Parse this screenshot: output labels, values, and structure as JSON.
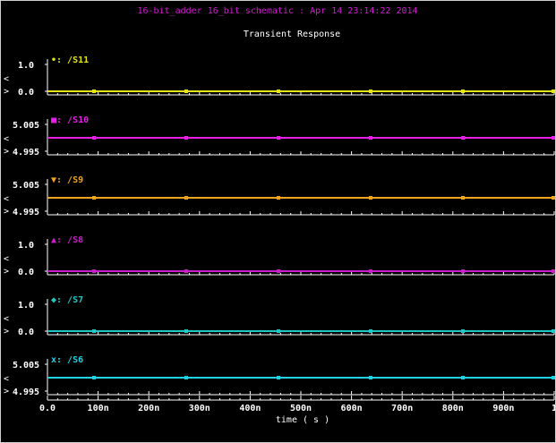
{
  "window": {
    "header": "16-bit_adder 16_bit schematic : Apr 14 23:14:22 2014",
    "title": "Transient Response"
  },
  "colors": {
    "background": "#000000",
    "axis": "#ffffff",
    "header": "#d21bd2"
  },
  "chart_data": [
    {
      "type": "line",
      "signal": "S11",
      "legend": "/S11",
      "marker": "•",
      "color": "#e4e419",
      "ytick_labels": [
        "1.0",
        "0.0"
      ],
      "ylim": [
        0.0,
        1.0
      ],
      "x": [
        0,
        1e-06
      ],
      "values": [
        0.0,
        0.0
      ]
    },
    {
      "type": "line",
      "signal": "S10",
      "legend": "/S10",
      "marker": "■",
      "color": "#e61ee6",
      "ytick_labels": [
        "5.005",
        "4.995"
      ],
      "ylim": [
        4.995,
        5.005
      ],
      "x": [
        0,
        1e-06
      ],
      "values": [
        5.0,
        5.0
      ]
    },
    {
      "type": "line",
      "signal": "S9",
      "legend": "/S9",
      "marker": "▼",
      "color": "#f0a51e",
      "ytick_labels": [
        "5.005",
        "4.995"
      ],
      "ylim": [
        4.995,
        5.005
      ],
      "x": [
        0,
        1e-06
      ],
      "values": [
        5.0,
        5.0
      ]
    },
    {
      "type": "line",
      "signal": "S8",
      "legend": "/S8",
      "marker": "▲",
      "color": "#cc1ecc",
      "ytick_labels": [
        "1.0",
        "0.0"
      ],
      "ylim": [
        0.0,
        1.0
      ],
      "x": [
        0,
        1e-06
      ],
      "values": [
        0.0,
        0.0
      ]
    },
    {
      "type": "line",
      "signal": "S7",
      "legend": "/S7",
      "marker": "◆",
      "color": "#1ec8c8",
      "ytick_labels": [
        "1.0",
        "0.0"
      ],
      "ylim": [
        0.0,
        1.0
      ],
      "x": [
        0,
        1e-06
      ],
      "values": [
        0.0,
        0.0
      ]
    },
    {
      "type": "line",
      "signal": "S6",
      "legend": "/S6",
      "marker": "x",
      "color": "#1ed2e6",
      "ytick_labels": [
        "5.005",
        "4.995"
      ],
      "ylim": [
        4.995,
        5.005
      ],
      "x": [
        0,
        1e-06
      ],
      "values": [
        5.0,
        5.0
      ]
    }
  ],
  "x_axis": {
    "label": "time ( s )",
    "ticks": [
      "0.0",
      "100n",
      "200n",
      "300n",
      "400n",
      "500n",
      "600n",
      "700n",
      "800n",
      "900n",
      "1"
    ],
    "range": [
      0,
      1e-06
    ]
  }
}
